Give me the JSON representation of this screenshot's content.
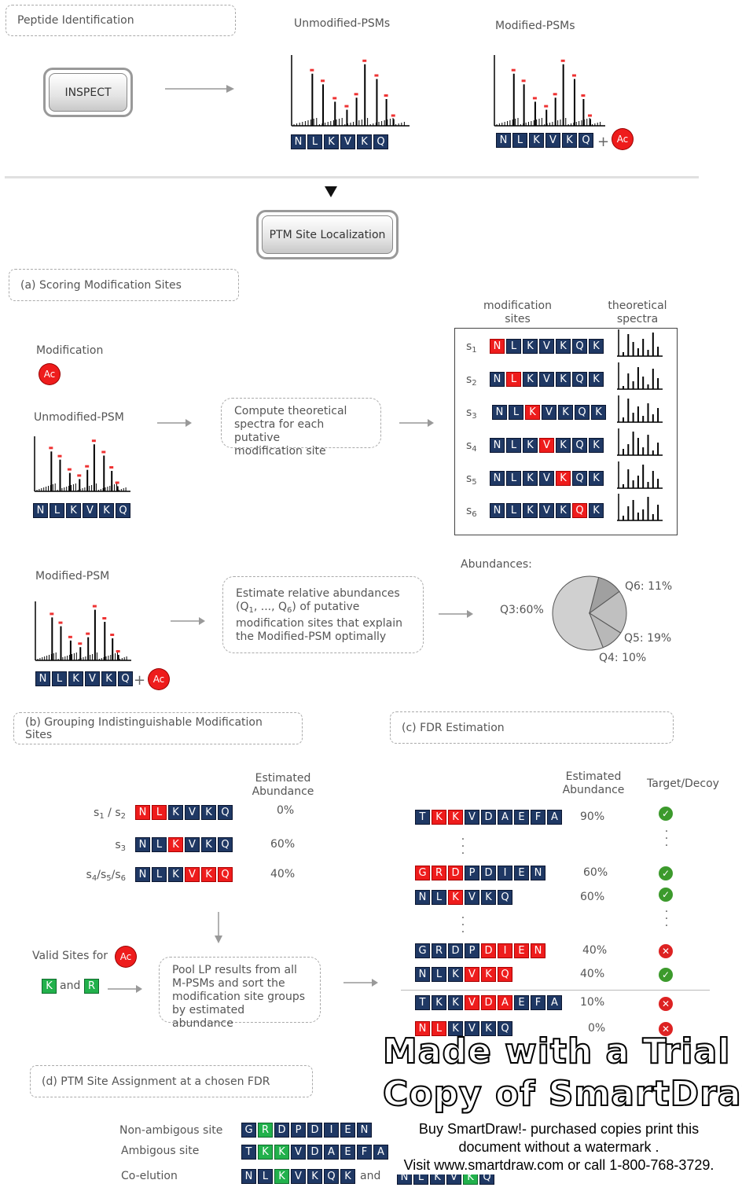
{
  "header": {
    "peptide_identification": "Peptide Identification",
    "unmodified_psms": "Unmodified-PSMs",
    "modified_psms": "Modified-PSMs",
    "inspect_button": "INSPECT",
    "ac_label": "Ac",
    "plus": "+",
    "peptide": [
      "N",
      "L",
      "K",
      "V",
      "K",
      "Q"
    ]
  },
  "ptm_button": "PTM Site Localization",
  "section_a": {
    "title": "(a) Scoring Modification Sites",
    "modification_label": "Modification",
    "unmodified_psm_label": "Unmodified-PSM",
    "modified_psm_label": "Modified-PSM",
    "compute_note": [
      "Compute theoretical",
      "spectra for each putative",
      "modification site"
    ],
    "estimate_note": [
      "Estimate relative abundances",
      "of putative",
      "modification sites that explain",
      "the Modified-PSM optimally"
    ],
    "estimate_q": [
      "(Q",
      "1",
      ", ..., Q",
      "6",
      ")"
    ],
    "col_modification_sites": [
      "modification",
      "sites"
    ],
    "col_theoretical_spectra": [
      "theoretical",
      "spectra"
    ],
    "site_rows": [
      {
        "s": "s",
        "i": "1",
        "residues": [
          "N",
          "L",
          "K",
          "V",
          "K",
          "Q",
          "K"
        ],
        "red": 0
      },
      {
        "s": "s",
        "i": "2",
        "residues": [
          "N",
          "L",
          "K",
          "V",
          "K",
          "Q",
          "K"
        ],
        "red": 1
      },
      {
        "s": "s",
        "i": "3",
        "residues": [
          "N",
          "L",
          "K",
          "V",
          "K",
          "Q",
          "K"
        ],
        "red": 2
      },
      {
        "s": "s",
        "i": "4",
        "residues": [
          "N",
          "L",
          "K",
          "V",
          "K",
          "Q",
          "K"
        ],
        "red": 3
      },
      {
        "s": "s",
        "i": "5",
        "residues": [
          "N",
          "L",
          "K",
          "V",
          "K",
          "Q",
          "K"
        ],
        "red": 4
      },
      {
        "s": "s",
        "i": "6",
        "residues": [
          "N",
          "L",
          "K",
          "V",
          "K",
          "Q",
          "K"
        ],
        "red": 5
      }
    ],
    "abundances_label": "Abundances:",
    "pie": {
      "q3": "Q3:60%",
      "q6": "Q6: 11%",
      "q5": "Q5: 19%",
      "q4": "Q4: 10%"
    }
  },
  "chart_data": {
    "type": "pie",
    "title": "Abundances:",
    "slices": [
      {
        "label": "Q3",
        "value": 60,
        "color": "#d0d0d0"
      },
      {
        "label": "Q6",
        "value": 11,
        "color": "#a0a0a0"
      },
      {
        "label": "Q5",
        "value": 19,
        "color": "#c0c0c0"
      },
      {
        "label": "Q4",
        "value": 10,
        "color": "#b8b8b8"
      }
    ]
  },
  "section_b": {
    "title": "(b) Grouping Indistinguishable Modification Sites",
    "estimated_abundance": [
      "Estimated",
      "Abundance"
    ],
    "groups": [
      {
        "label": "s1 / s2",
        "parts": [
          [
            "s",
            "1"
          ],
          [
            " / ",
            ""
          ],
          [
            "s",
            "2"
          ]
        ],
        "residues": [
          "N",
          "L",
          "K",
          "V",
          "K",
          "Q"
        ],
        "red": [
          0,
          1
        ],
        "value": "0%"
      },
      {
        "label": "s3",
        "parts": [
          [
            "s",
            "3"
          ]
        ],
        "residues": [
          "N",
          "L",
          "K",
          "V",
          "K",
          "Q"
        ],
        "red": [
          2
        ],
        "value": "60%"
      },
      {
        "label": "s4/s5/s6",
        "parts": [
          [
            "s",
            "4"
          ],
          [
            "/",
            ""
          ],
          [
            "s",
            "5"
          ],
          [
            "/",
            ""
          ],
          [
            "s",
            "6"
          ]
        ],
        "residues": [
          "N",
          "L",
          "K",
          "V",
          "K",
          "Q"
        ],
        "red": [
          3,
          4,
          5
        ],
        "value": "40%"
      }
    ],
    "valid_sites_label": "Valid Sites for",
    "valid_k": "K",
    "valid_and": "and",
    "valid_r": "R",
    "pool_note": [
      "Pool LP results from all",
      "M-PSMs and sort the",
      "modification site groups",
      "by estimated abundance"
    ]
  },
  "section_c": {
    "title": "(c) FDR Estimation",
    "estimated_abundance": [
      "Estimated",
      "Abundance"
    ],
    "target_decoy": "Target/Decoy",
    "rows": [
      {
        "residues": [
          "T",
          "K",
          "K",
          "V",
          "D",
          "A",
          "E",
          "F",
          "A"
        ],
        "red": [
          1,
          2
        ],
        "value": "90%",
        "status": "ok"
      },
      {
        "residues": [
          "G",
          "R",
          "D",
          "P",
          "D",
          "I",
          "E",
          "N"
        ],
        "red": [
          0,
          1,
          2
        ],
        "value": "60%",
        "status": "ok"
      },
      {
        "residues": [
          "N",
          "L",
          "K",
          "V",
          "K",
          "Q"
        ],
        "red": [
          2
        ],
        "value": "60%",
        "status": "ok"
      },
      {
        "residues": [
          "G",
          "R",
          "D",
          "P",
          "D",
          "I",
          "E",
          "N"
        ],
        "red": [
          4,
          5,
          6,
          7
        ],
        "value": "40%",
        "status": "bad"
      },
      {
        "residues": [
          "N",
          "L",
          "K",
          "V",
          "K",
          "Q"
        ],
        "red": [
          3,
          4,
          5
        ],
        "value": "40%",
        "status": "ok"
      },
      {
        "residues": [
          "T",
          "K",
          "K",
          "V",
          "D",
          "A",
          "E",
          "F",
          "A"
        ],
        "red": [
          3,
          4,
          5
        ],
        "value": "10%",
        "status": "bad"
      },
      {
        "residues": [
          "N",
          "L",
          "K",
          "V",
          "K",
          "Q"
        ],
        "red": [
          0,
          1
        ],
        "value": "0%",
        "status": "bad"
      }
    ]
  },
  "section_d": {
    "title": "(d) PTM Site Assignment at a chosen FDR",
    "non_ambiguous": "Non-ambigous site",
    "ambiguous": "Ambigous site",
    "co_elution": "Co-elution",
    "and": "and",
    "seq_non_ambiguous": {
      "residues": [
        "G",
        "R",
        "D",
        "P",
        "D",
        "I",
        "E",
        "N"
      ],
      "green": [
        1
      ]
    },
    "seq_ambiguous": {
      "residues": [
        "T",
        "K",
        "K",
        "V",
        "D",
        "A",
        "E",
        "F",
        "A"
      ],
      "green": [
        1,
        2
      ]
    },
    "seq_co1": {
      "residues": [
        "N",
        "L",
        "K",
        "V",
        "K",
        "Q",
        "K"
      ],
      "green": [
        2
      ]
    },
    "seq_co2": {
      "residues": [
        "N",
        "L",
        "K",
        "V",
        "K",
        "Q"
      ],
      "green": [
        4
      ]
    }
  },
  "watermark": {
    "line1": "Made with a Trial",
    "line2": "Copy of SmartDraw",
    "body1": "Buy SmartDraw!- purchased copies print this",
    "body2": "document without a watermark .",
    "body3": "Visit www.smartdraw.com or call 1-800-768-3729."
  },
  "colors": {
    "residue_blue": "#1f3864",
    "residue_red": "#ee1c1c",
    "residue_green": "#22b14c",
    "target_ok": "#3c9a2c",
    "decoy_bad": "#dd2222"
  }
}
